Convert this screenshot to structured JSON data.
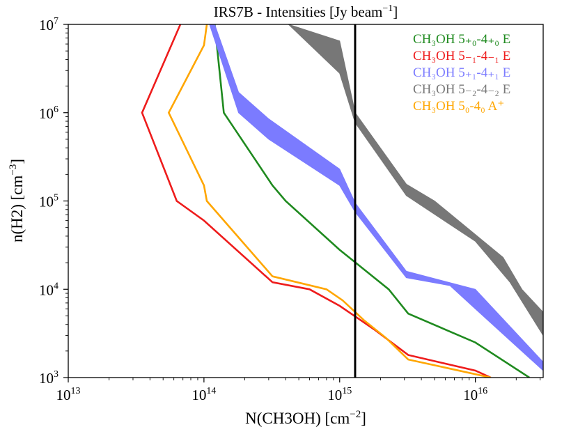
{
  "chart_data": {
    "type": "line",
    "title": "IRS7B - Intensities [Jy beam",
    "title_unit_exponent": "−1",
    "title_suffix": "]",
    "xlabel": "N(CH3OH) [cm",
    "xlabel_exponent": "−2",
    "xlabel_suffix": "]",
    "ylabel": "n(H2) [cm",
    "ylabel_exponent": "−3",
    "ylabel_suffix": "]",
    "xscale": "log",
    "yscale": "log",
    "xlim": [
      10000000000000.0,
      3.16e+16
    ],
    "ylim": [
      1000.0,
      10000000.0
    ],
    "x_ticks": [
      {
        "value": 10000000000000.0,
        "base": "10",
        "exp": "13"
      },
      {
        "value": 100000000000000.0,
        "base": "10",
        "exp": "14"
      },
      {
        "value": 1000000000000000.0,
        "base": "10",
        "exp": "15"
      },
      {
        "value": 1e+16,
        "base": "10",
        "exp": "16"
      }
    ],
    "y_ticks": [
      {
        "value": 1000.0,
        "base": "10",
        "exp": "3"
      },
      {
        "value": 10000.0,
        "base": "10",
        "exp": "4"
      },
      {
        "value": 100000.0,
        "base": "10",
        "exp": "5"
      },
      {
        "value": 1000000.0,
        "base": "10",
        "exp": "6"
      },
      {
        "value": 10000000.0,
        "base": "10",
        "exp": "7"
      }
    ],
    "vertical_line": {
      "x": 1300000000000000.0,
      "color": "#000000"
    },
    "legend_position": "top-right",
    "series": [
      {
        "name": "CH3OH 5+0-4+0 E",
        "label": "CH₃OH 5₊₀-4₊₀ E",
        "kind": "line",
        "color": "#1f8a1f",
        "points": [
          [
            120000000000000.0,
            10000000.0
          ],
          [
            140000000000000.0,
            1000000.0
          ],
          [
            320000000000000.0,
            150000.0
          ],
          [
            400000000000000.0,
            100000.0
          ],
          [
            1000000000000000.0,
            28000.0
          ],
          [
            2300000000000000.0,
            10000.0
          ],
          [
            3200000000000000.0,
            5300.0
          ],
          [
            1e+16,
            2500.0
          ],
          [
            2.5e+16,
            1000.0
          ]
        ]
      },
      {
        "name": "CH3OH 5-1-4-1 E",
        "label": "CH₃OH 5₋₁-4₋₁ E",
        "kind": "line",
        "color": "#ee1c1c",
        "points": [
          [
            67000000000000.0,
            10000000.0
          ],
          [
            35000000000000.0,
            1000000.0
          ],
          [
            63000000000000.0,
            100000.0
          ],
          [
            100000000000000.0,
            60000.0
          ],
          [
            320000000000000.0,
            12000.0
          ],
          [
            600000000000000.0,
            10000.0
          ],
          [
            1000000000000000.0,
            6500.0
          ],
          [
            1800000000000000.0,
            3500.0
          ],
          [
            3200000000000000.0,
            1800.0
          ],
          [
            1e+16,
            1200.0
          ],
          [
            1.3e+16,
            1000.0
          ]
        ]
      },
      {
        "name": "CH3OH 5+1-4+1 E",
        "label": "CH₃OH 5₊₁-4₊₁ E",
        "kind": "band",
        "color": "#7b7bff",
        "upper": [
          [
            120000000000000.0,
            10000000.0
          ],
          [
            180000000000000.0,
            1700000.0
          ],
          [
            300000000000000.0,
            850000.0
          ],
          [
            1000000000000000.0,
            230000.0
          ],
          [
            1300000000000000.0,
            95000.0
          ],
          [
            3100000000000000.0,
            16000.0
          ],
          [
            1e+16,
            10000.0
          ],
          [
            3.16e+16,
            1500.0
          ]
        ],
        "lower": [
          [
            110000000000000.0,
            10000000.0
          ],
          [
            180000000000000.0,
            1000000.0
          ],
          [
            300000000000000.0,
            500000.0
          ],
          [
            1000000000000000.0,
            150000.0
          ],
          [
            1300000000000000.0,
            75000.0
          ],
          [
            3100000000000000.0,
            13500.0
          ],
          [
            6500000000000000.0,
            11000.0
          ],
          [
            1e+16,
            6000.0
          ],
          [
            3.16e+16,
            1200.0
          ]
        ]
      },
      {
        "name": "CH3OH 5-2-4-2 E",
        "label": "CH₃OH 5₋₂-4₋₂ E",
        "kind": "band",
        "color": "#777777",
        "upper": [
          [
            420000000000000.0,
            10000000.0
          ],
          [
            1000000000000000.0,
            6500000.0
          ],
          [
            1300000000000000.0,
            1000000.0
          ],
          [
            3100000000000000.0,
            155000.0
          ],
          [
            5000000000000000.0,
            100000.0
          ],
          [
            1.6e+16,
            23000.0
          ],
          [
            2.2e+16,
            10000.0
          ],
          [
            3.16e+16,
            5500.0
          ]
        ],
        "lower": [
          [
            1000000000000000.0,
            2800000.0
          ],
          [
            1300000000000000.0,
            770000.0
          ],
          [
            3100000000000000.0,
            115000.0
          ],
          [
            1e+16,
            35000.0
          ],
          [
            1.8e+16,
            12000.0
          ],
          [
            3.16e+16,
            3000.0
          ]
        ]
      },
      {
        "name": "CH3OH 50-40 A+",
        "label": "CH₃OH 5₀-4₀ A⁺",
        "kind": "line",
        "color": "#ffa600",
        "points": [
          [
            105000000000000.0,
            10000000.0
          ],
          [
            100000000000000.0,
            5800000.0
          ],
          [
            55000000000000.0,
            1000000.0
          ],
          [
            100000000000000.0,
            150000.0
          ],
          [
            105000000000000.0,
            100000.0
          ],
          [
            320000000000000.0,
            14000.0
          ],
          [
            800000000000000.0,
            10000.0
          ],
          [
            1050000000000000.0,
            7500.0
          ],
          [
            1500000000000000.0,
            4500.0
          ],
          [
            2200000000000000.0,
            2800.0
          ],
          [
            3200000000000000.0,
            1600.0
          ],
          [
            1.3e+16,
            1000.0
          ]
        ]
      }
    ]
  }
}
